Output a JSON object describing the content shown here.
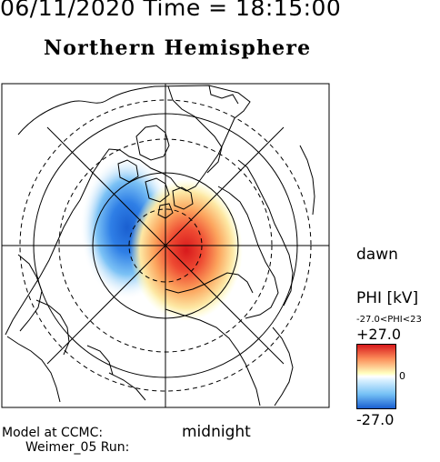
{
  "header": {
    "datetime": "06/11/2020 Time = 18:15:00",
    "hemisphere": "Northern Hemisphere"
  },
  "labels": {
    "dawn": "dawn",
    "midnight": "midnight"
  },
  "model": {
    "line1": "Model at CCMC:",
    "line2": "Weimer_05 Run:"
  },
  "colorbar": {
    "title": "PHI [kV]",
    "range_text": "-27.0<PHI<23",
    "max_label": "+27.0",
    "zero_label": "0",
    "min_label": "-27.0",
    "colors": {
      "positive": "#d7191c",
      "neutral": "#ffffff",
      "negative": "#1a5fd0"
    }
  }
}
